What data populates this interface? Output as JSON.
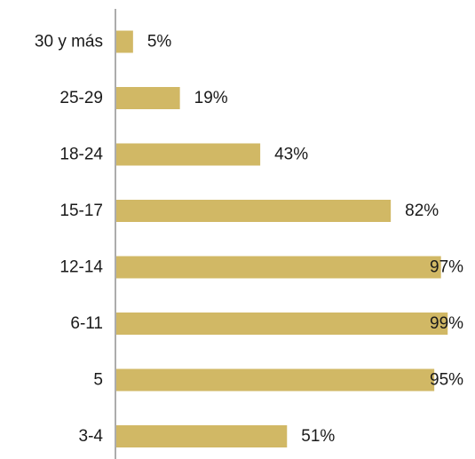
{
  "chart_data": {
    "type": "bar",
    "orientation": "horizontal",
    "categories": [
      "30 y más",
      "25-29",
      "18-24",
      "15-17",
      "12-14",
      "6-11",
      "5",
      "3-4"
    ],
    "values": [
      5,
      19,
      43,
      82,
      97,
      99,
      95,
      51
    ],
    "value_labels": [
      "5%",
      "19%",
      "43%",
      "82%",
      "97%",
      "99%",
      "95%",
      "51%"
    ],
    "unit": "%",
    "title": "",
    "xlabel": "",
    "ylabel": "",
    "xlim": [
      0,
      100
    ],
    "grid": false,
    "legend": "none",
    "bar_color": "#D1B865",
    "axis_color": "#808080",
    "text_color": "#1a1a1a"
  }
}
